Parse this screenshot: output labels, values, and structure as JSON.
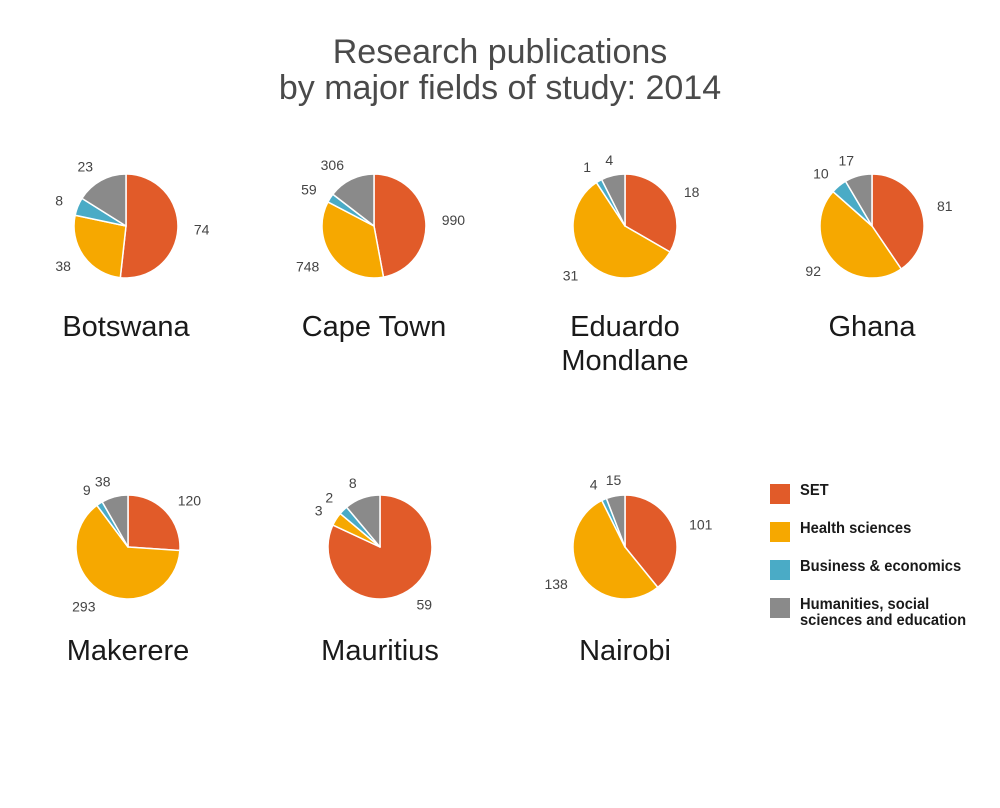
{
  "title": [
    "Research publications",
    "by major fields of study: 2014"
  ],
  "colors": {
    "SET": "#E15B29",
    "Health sciences": "#F6A800",
    "Business & economics": "#4AABC6",
    "Humanities, social sciences and education": "#8A8A8A"
  },
  "legend": [
    {
      "lines": [
        "SET"
      ],
      "color": "#E15B29"
    },
    {
      "lines": [
        "Health sciences"
      ],
      "color": "#F6A800"
    },
    {
      "lines": [
        "Business & economics"
      ],
      "color": "#4AABC6"
    },
    {
      "lines": [
        "Humanities, social",
        "sciences and education"
      ],
      "color": "#8A8A8A"
    }
  ],
  "chart_data": [
    {
      "type": "pie",
      "title": [
        "Botswana"
      ],
      "categories": [
        "SET",
        "Health sciences",
        "Business & economics",
        "Humanities, social sciences and education"
      ],
      "values": [
        74,
        38,
        8,
        23
      ]
    },
    {
      "type": "pie",
      "title": [
        "Cape Town"
      ],
      "categories": [
        "SET",
        "Health sciences",
        "Business & economics",
        "Humanities, social sciences and education"
      ],
      "values": [
        990,
        748,
        59,
        306
      ]
    },
    {
      "type": "pie",
      "title": [
        "Eduardo",
        "Mondlane"
      ],
      "categories": [
        "SET",
        "Health sciences",
        "Business & economics",
        "Humanities, social sciences and education"
      ],
      "values": [
        18,
        31,
        1,
        4
      ]
    },
    {
      "type": "pie",
      "title": [
        "Ghana"
      ],
      "categories": [
        "SET",
        "Health sciences",
        "Business & economics",
        "Humanities, social sciences and education"
      ],
      "values": [
        81,
        92,
        10,
        17
      ]
    },
    {
      "type": "pie",
      "title": [
        "Makerere"
      ],
      "categories": [
        "SET",
        "Health sciences",
        "Business & economics",
        "Humanities, social sciences and education"
      ],
      "values": [
        120,
        293,
        9,
        38
      ]
    },
    {
      "type": "pie",
      "title": [
        "Mauritius"
      ],
      "categories": [
        "SET",
        "Health sciences",
        "Business & economics",
        "Humanities, social sciences and education"
      ],
      "values": [
        59,
        3,
        2,
        8
      ]
    },
    {
      "type": "pie",
      "title": [
        "Nairobi"
      ],
      "categories": [
        "SET",
        "Health sciences",
        "Business & economics",
        "Humanities, social sciences and education"
      ],
      "values": [
        101,
        138,
        4,
        15
      ]
    }
  ]
}
